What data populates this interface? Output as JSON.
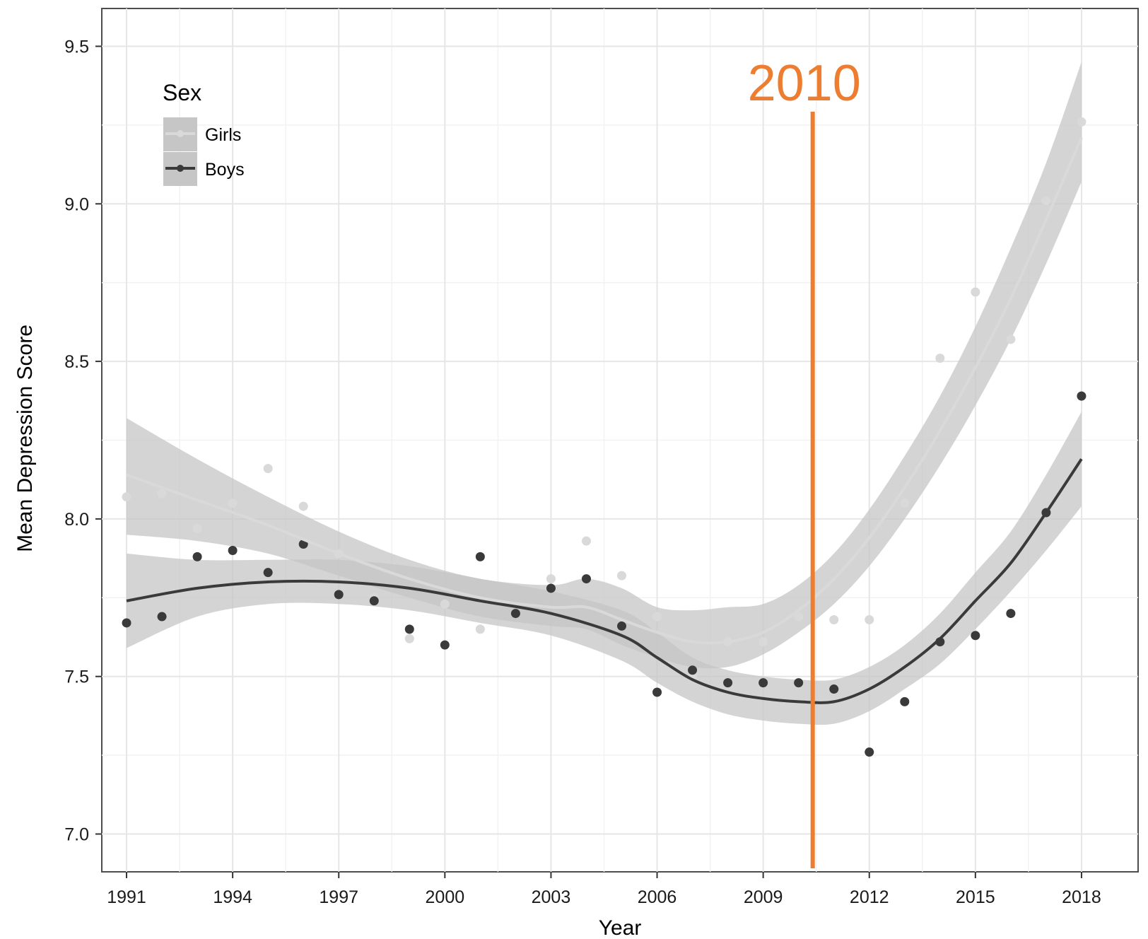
{
  "chart_data": {
    "type": "scatter",
    "title": "",
    "xlabel": "Year",
    "ylabel": "Mean Depression Score",
    "xlim": [
      1990.3,
      2019.6
    ],
    "ylim": [
      6.88,
      9.62
    ],
    "x_ticks": [
      1991,
      1994,
      1997,
      2000,
      2003,
      2006,
      2009,
      2012,
      2015,
      2018
    ],
    "y_ticks": [
      7.0,
      7.5,
      8.0,
      8.5,
      9.0,
      9.5
    ],
    "y_tick_labels": [
      "7.0",
      "7.5",
      "8.0",
      "8.5",
      "9.0",
      "9.5"
    ],
    "grid": true,
    "legend": {
      "title": "Sex",
      "position": "top-left",
      "entries": [
        "Girls",
        "Boys"
      ]
    },
    "colors": {
      "girls": "#d9d9d9",
      "boys": "#3a3a3a",
      "ribbon": "#c6c6c6",
      "annotation": "#ED7D31"
    },
    "series": [
      {
        "name": "Girls",
        "points": {
          "x": [
            1991,
            1992,
            1993,
            1994,
            1995,
            1996,
            1997,
            1998,
            1999,
            2000,
            2001,
            2002,
            2003,
            2004,
            2005,
            2006,
            2007,
            2008,
            2009,
            2010,
            2011,
            2012,
            2013,
            2014,
            2015,
            2016,
            2017,
            2018
          ],
          "y": [
            8.07,
            8.08,
            7.97,
            8.05,
            8.16,
            8.04,
            7.89,
            7.75,
            7.62,
            7.73,
            7.65,
            7.7,
            7.81,
            7.93,
            7.82,
            7.69,
            7.5,
            7.61,
            7.61,
            7.69,
            7.68,
            7.68,
            8.05,
            8.51,
            8.72,
            8.57,
            9.01,
            9.26
          ]
        },
        "trend": {
          "x": [
            1991,
            1993,
            1995,
            1997,
            1999,
            2001,
            2003,
            2004,
            2005,
            2006,
            2007,
            2008,
            2009,
            2010,
            2011,
            2012,
            2013,
            2014,
            2015,
            2016,
            2017,
            2018
          ],
          "y": [
            8.14,
            8.06,
            7.98,
            7.89,
            7.81,
            7.75,
            7.72,
            7.72,
            7.68,
            7.64,
            7.61,
            7.61,
            7.64,
            7.71,
            7.81,
            7.94,
            8.1,
            8.28,
            8.48,
            8.7,
            8.95,
            9.21
          ],
          "lower": [
            7.95,
            7.93,
            7.89,
            7.82,
            7.75,
            7.69,
            7.66,
            7.65,
            7.6,
            7.56,
            7.53,
            7.53,
            7.57,
            7.64,
            7.73,
            7.85,
            8.0,
            8.17,
            8.36,
            8.57,
            8.81,
            9.07
          ],
          "upper": [
            8.32,
            8.19,
            8.07,
            7.96,
            7.87,
            7.81,
            7.79,
            7.81,
            7.78,
            7.72,
            7.71,
            7.72,
            7.73,
            7.79,
            7.89,
            8.03,
            8.2,
            8.39,
            8.61,
            8.86,
            9.13,
            9.45
          ]
        }
      },
      {
        "name": "Boys",
        "points": {
          "x": [
            1991,
            1992,
            1993,
            1994,
            1995,
            1996,
            1997,
            1998,
            1999,
            2000,
            2001,
            2002,
            2003,
            2004,
            2005,
            2006,
            2007,
            2008,
            2009,
            2010,
            2011,
            2012,
            2013,
            2014,
            2015,
            2016,
            2017,
            2018
          ],
          "y": [
            7.67,
            7.69,
            7.88,
            7.9,
            7.83,
            7.92,
            7.76,
            7.74,
            7.65,
            7.6,
            7.88,
            7.7,
            7.78,
            7.81,
            7.66,
            7.45,
            7.52,
            7.48,
            7.48,
            7.48,
            7.46,
            7.26,
            7.42,
            7.61,
            7.63,
            7.7,
            8.02,
            8.39
          ]
        },
        "trend": {
          "x": [
            1991,
            1993,
            1995,
            1997,
            1999,
            2001,
            2003,
            2005,
            2006,
            2007,
            2008,
            2009,
            2010,
            2011,
            2012,
            2013,
            2014,
            2015,
            2016,
            2017,
            2018
          ],
          "y": [
            7.74,
            7.78,
            7.8,
            7.8,
            7.78,
            7.74,
            7.7,
            7.63,
            7.56,
            7.49,
            7.45,
            7.43,
            7.42,
            7.42,
            7.46,
            7.53,
            7.62,
            7.74,
            7.86,
            8.02,
            8.19
          ],
          "lower": [
            7.59,
            7.69,
            7.73,
            7.73,
            7.71,
            7.67,
            7.63,
            7.55,
            7.48,
            7.42,
            7.38,
            7.36,
            7.35,
            7.35,
            7.39,
            7.46,
            7.54,
            7.65,
            7.77,
            7.9,
            8.04
          ],
          "upper": [
            7.89,
            7.87,
            7.87,
            7.87,
            7.85,
            7.81,
            7.77,
            7.71,
            7.64,
            7.56,
            7.52,
            7.5,
            7.49,
            7.49,
            7.53,
            7.6,
            7.7,
            7.83,
            7.96,
            8.14,
            8.34
          ]
        }
      }
    ],
    "annotation": {
      "label": "2010",
      "x": 2010.4
    }
  }
}
